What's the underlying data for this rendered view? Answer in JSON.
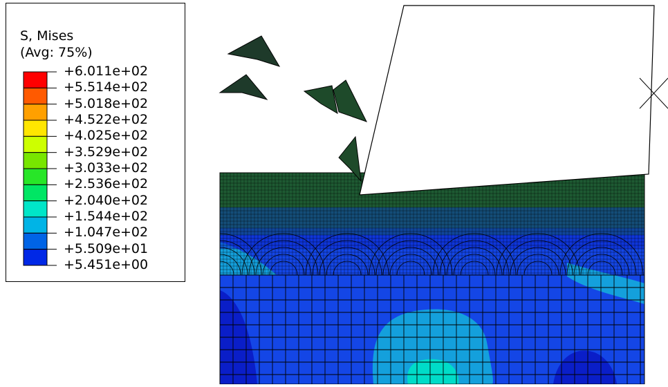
{
  "legend": {
    "title": "S, Mises",
    "subtitle": "(Avg: 75%)",
    "values": [
      "+6.011e+02",
      "+5.514e+02",
      "+5.018e+02",
      "+4.522e+02",
      "+4.025e+02",
      "+3.529e+02",
      "+3.033e+02",
      "+2.536e+02",
      "+2.040e+02",
      "+1.544e+02",
      "+1.047e+02",
      "+5.509e+01",
      "+5.451e+00"
    ],
    "colors": [
      "#ff0000",
      "#ff5a00",
      "#ffa000",
      "#ffe600",
      "#cdff00",
      "#78e600",
      "#28e628",
      "#00e664",
      "#00e6c8",
      "#00b4e6",
      "#0064e6",
      "#0028e6",
      "#0000e6"
    ]
  },
  "contour_colors": {
    "background": "#1446e6",
    "light": "#14a0dc",
    "cyan": "#00dcc8",
    "dark": "#0a1ec8",
    "surface": "#1e5a32"
  }
}
